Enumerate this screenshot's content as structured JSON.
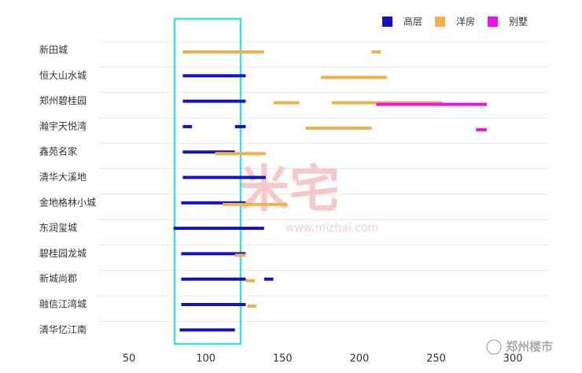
{
  "chart_data": {
    "type": "range-bar",
    "categories": [
      "新田城",
      "恒大山水城",
      "郑州碧桂园",
      "瀚宇天悦湾",
      "鑫苑名家",
      "清华大溪地",
      "金地格林小城",
      "东润玺城",
      "碧桂园龙城",
      "新城尚郡",
      "融信江湾城",
      "清华忆江南"
    ],
    "series": [
      {
        "name": "高层",
        "color": "#1212c4",
        "values": [
          [],
          [
            [
              85,
              126
            ]
          ],
          [
            [
              85,
              126
            ]
          ],
          [
            [
              85,
              91
            ],
            [
              119,
              126
            ]
          ],
          [
            [
              85,
              119
            ]
          ],
          [
            [
              85,
              139
            ]
          ],
          [
            [
              84,
              126
            ]
          ],
          [
            [
              79,
              138
            ]
          ],
          [
            [
              84,
              126
            ]
          ],
          [
            [
              84,
              126
            ],
            [
              138,
              144
            ]
          ],
          [
            [
              84,
              126
            ]
          ],
          [
            [
              83,
              119
            ]
          ]
        ]
      },
      {
        "name": "洋房",
        "color": "#f3b04a",
        "values": [
          [
            [
              85,
              138
            ],
            [
              208,
              214
            ]
          ],
          [
            [
              175,
              218
            ]
          ],
          [
            [
              144,
              161
            ],
            [
              182,
              254
            ]
          ],
          [
            [
              165,
              208
            ]
          ],
          [
            [
              106,
              139
            ]
          ],
          [],
          [
            [
              111,
              153
            ]
          ],
          [],
          [
            [
              119,
              126
            ]
          ],
          [
            [
              126,
              132
            ]
          ],
          [
            [
              127,
              133
            ]
          ],
          []
        ]
      },
      {
        "name": "别墅",
        "color": "#ee11ee",
        "values": [
          [],
          [],
          [
            [
              211,
              283
            ]
          ],
          [
            [
              276,
              283
            ]
          ],
          [],
          [],
          [],
          [],
          [],
          [],
          [],
          []
        ]
      }
    ],
    "xlim": [
      30,
      323
    ],
    "xticks": [
      50,
      100,
      150,
      200,
      250,
      300
    ],
    "legend": "top-right",
    "watermark": "米宅",
    "watermark_url": "www.mizhai.com",
    "source": "郑州楼市"
  }
}
